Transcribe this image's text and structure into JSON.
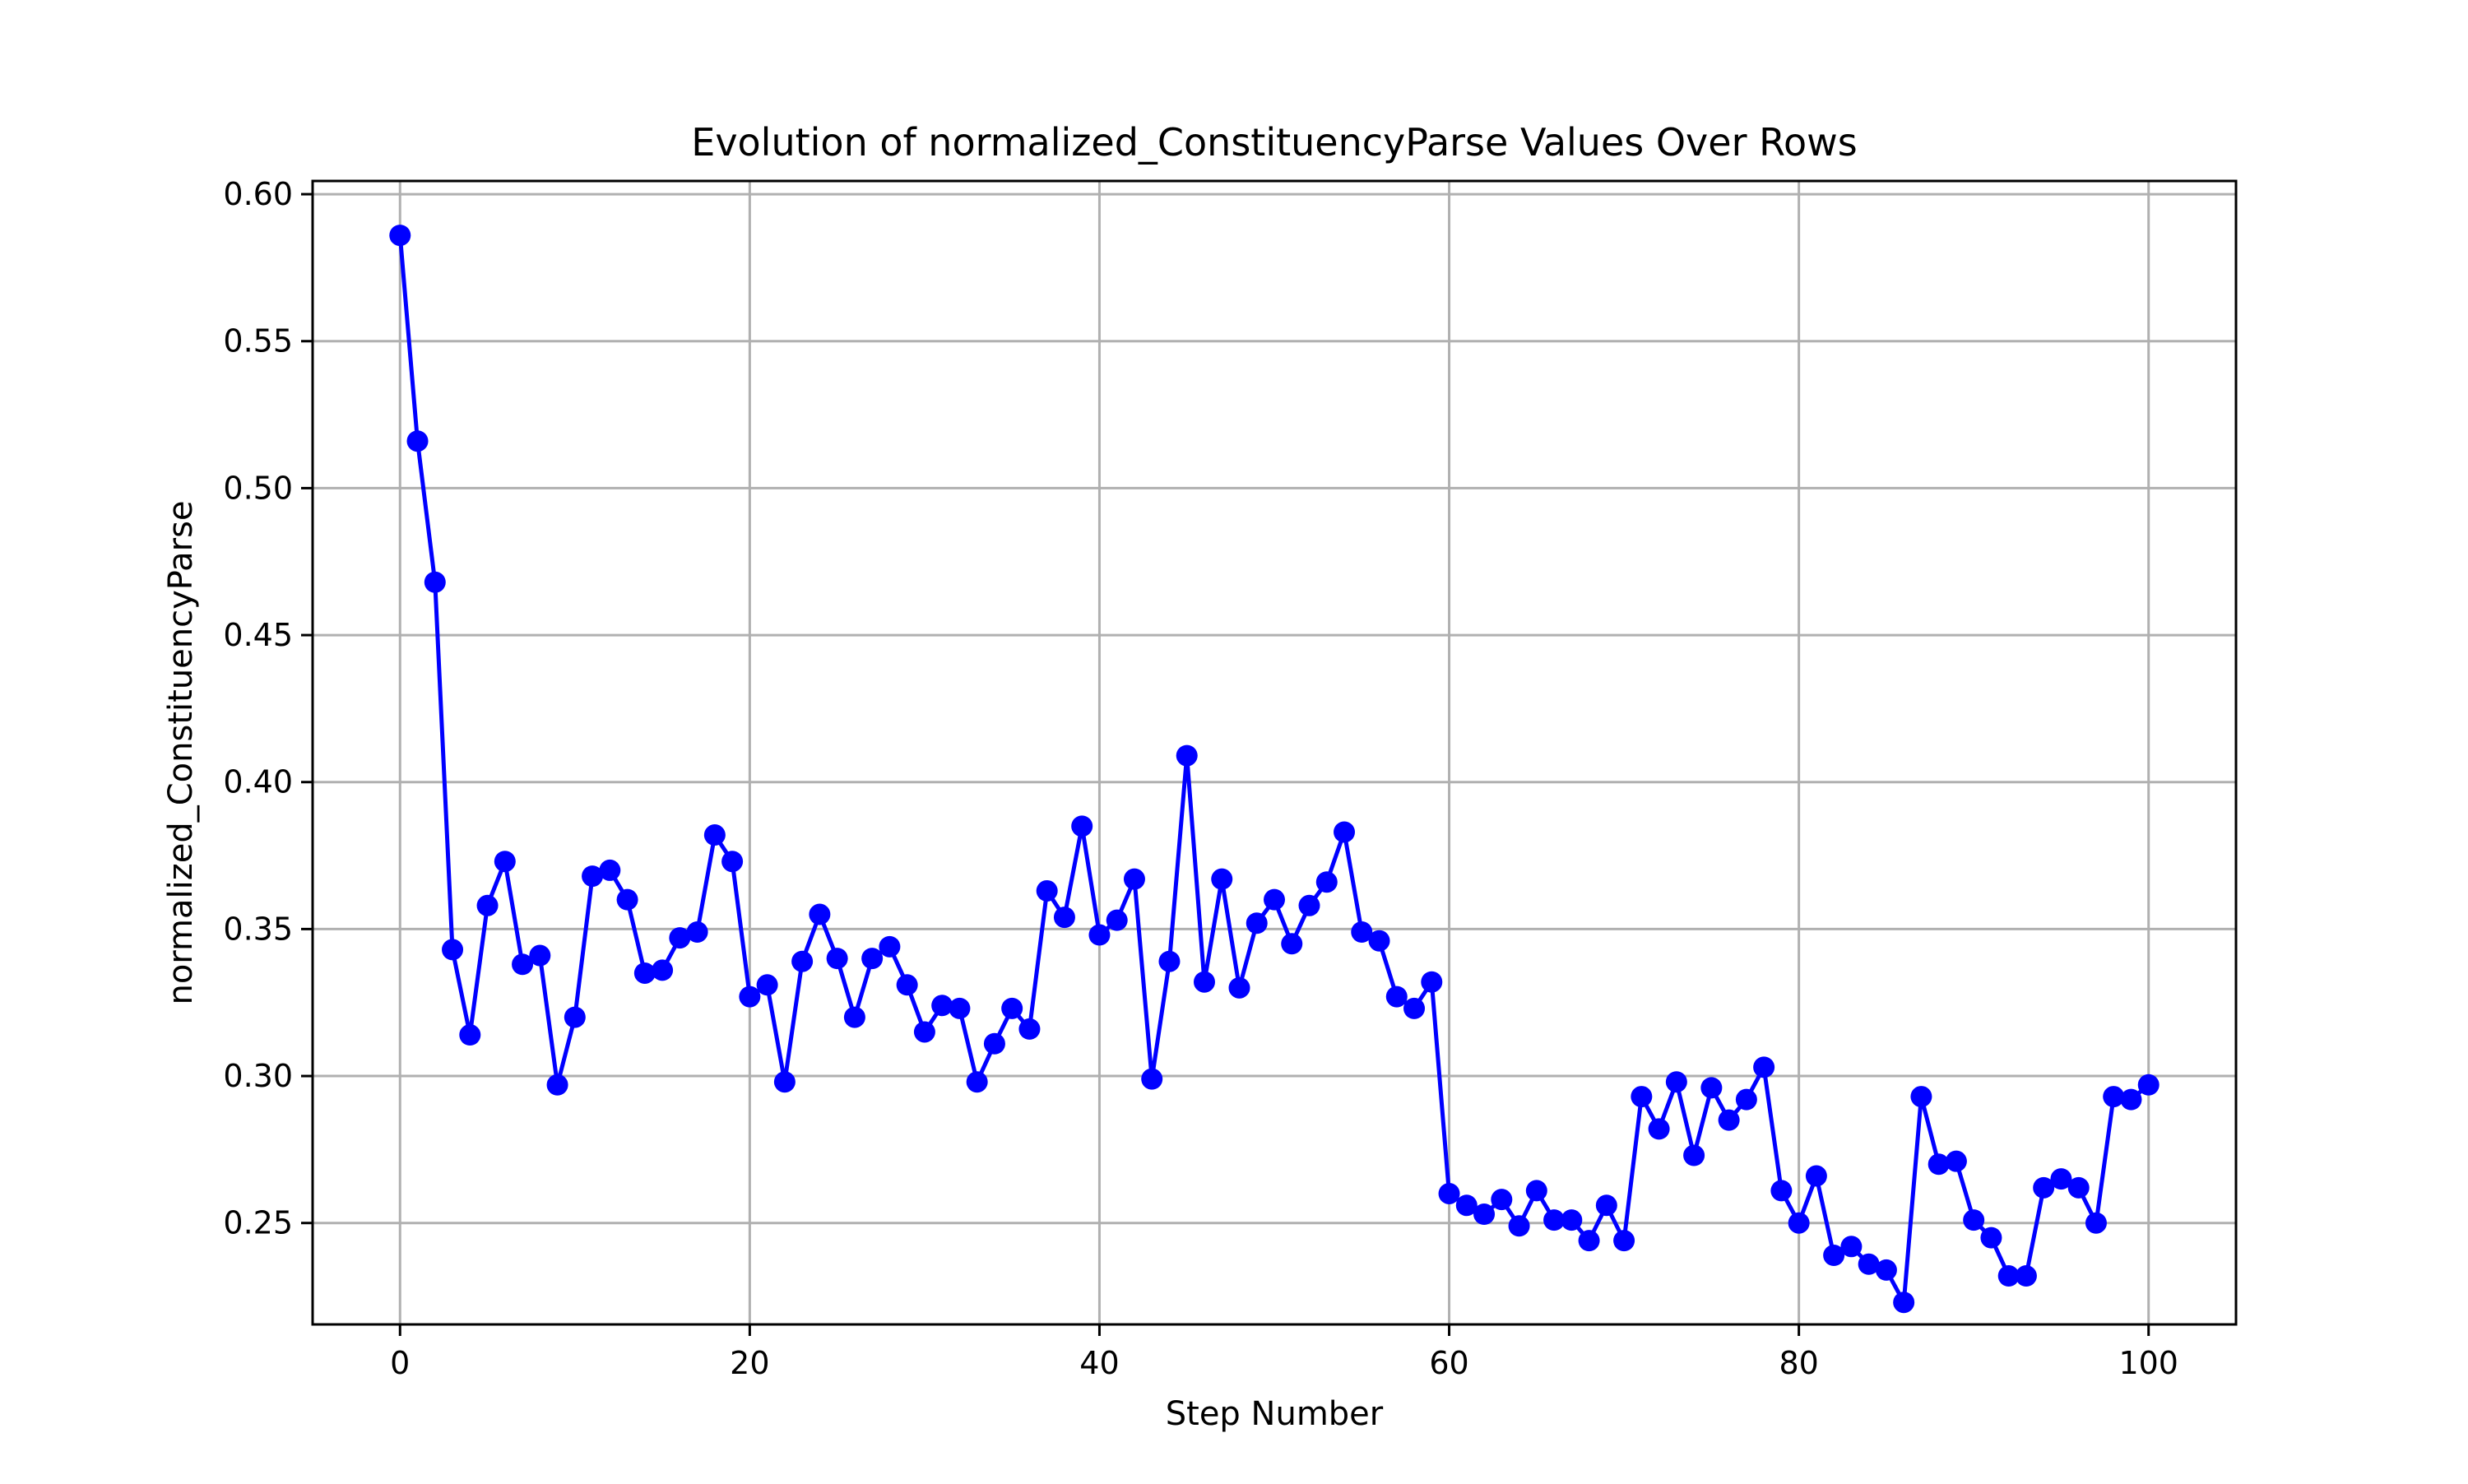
{
  "chart_data": {
    "type": "line",
    "title": "Evolution of normalized_ConstituencyParse Values Over Rows",
    "xlabel": "Step Number",
    "ylabel": "normalized_ConstituencyParse",
    "xlim": [
      -5,
      105
    ],
    "ylim": [
      0.2155,
      0.6045
    ],
    "xticks": [
      0,
      20,
      40,
      60,
      80,
      100
    ],
    "yticks": [
      0.25,
      0.3,
      0.35,
      0.4,
      0.45,
      0.5,
      0.55,
      0.6
    ],
    "ytick_labels": [
      "0.25",
      "0.30",
      "0.35",
      "0.40",
      "0.45",
      "0.50",
      "0.55",
      "0.60"
    ],
    "grid": true,
    "line_color": "#0000ff",
    "marker": "circle",
    "series": [
      {
        "x": [
          0,
          1,
          2,
          3,
          4,
          5,
          6,
          7,
          8,
          9,
          10,
          11,
          12,
          13,
          14,
          15,
          16,
          17,
          18,
          19,
          20,
          21,
          22,
          23,
          24,
          25,
          26,
          27,
          28,
          29,
          30,
          31,
          32,
          33,
          34,
          35,
          36,
          37,
          38,
          39,
          40,
          41,
          42,
          43,
          44,
          45,
          46,
          47,
          48,
          49,
          50,
          51,
          52,
          53,
          54,
          55,
          56,
          57,
          58,
          59,
          60,
          61,
          62,
          63,
          64,
          65,
          66,
          67,
          68,
          69,
          70,
          71,
          72,
          73,
          74,
          75,
          76,
          77,
          78,
          79,
          80,
          81,
          82,
          83,
          84,
          85,
          86,
          87,
          88,
          89,
          90,
          91,
          92,
          93,
          94,
          95,
          96,
          97,
          98,
          99,
          100
        ],
        "values": [
          0.586,
          0.516,
          0.468,
          0.343,
          0.314,
          0.358,
          0.373,
          0.338,
          0.341,
          0.297,
          0.32,
          0.368,
          0.37,
          0.36,
          0.335,
          0.336,
          0.347,
          0.349,
          0.382,
          0.373,
          0.327,
          0.331,
          0.298,
          0.339,
          0.355,
          0.34,
          0.32,
          0.34,
          0.344,
          0.331,
          0.315,
          0.324,
          0.323,
          0.298,
          0.311,
          0.323,
          0.316,
          0.363,
          0.354,
          0.385,
          0.348,
          0.353,
          0.367,
          0.299,
          0.339,
          0.409,
          0.332,
          0.367,
          0.33,
          0.352,
          0.36,
          0.345,
          0.358,
          0.366,
          0.383,
          0.349,
          0.346,
          0.327,
          0.323,
          0.332,
          0.26,
          0.256,
          0.253,
          0.258,
          0.249,
          0.261,
          0.251,
          0.251,
          0.244,
          0.256,
          0.244,
          0.293,
          0.282,
          0.298,
          0.273,
          0.296,
          0.285,
          0.292,
          0.303,
          0.261,
          0.25,
          0.266,
          0.239,
          0.242,
          0.236,
          0.234,
          0.223,
          0.293,
          0.27,
          0.271,
          0.251,
          0.245,
          0.232,
          0.232,
          0.262,
          0.265,
          0.262,
          0.25,
          0.293,
          0.292,
          0.297
        ]
      }
    ]
  }
}
